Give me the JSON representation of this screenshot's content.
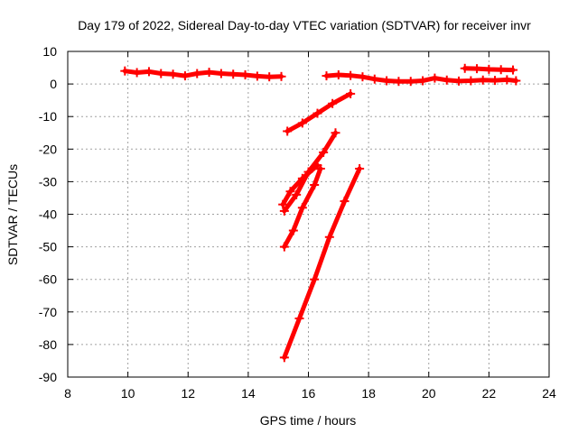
{
  "chart_data": {
    "type": "scatter",
    "title": "Day 179 of 2022, Sidereal Day-to-day VTEC variation (SDTVAR) for receiver invr",
    "xlabel": "GPS time / hours",
    "ylabel": "SDTVAR / TECUs",
    "xlim": [
      8,
      24
    ],
    "ylim": [
      -90,
      10
    ],
    "xticks": [
      8,
      10,
      12,
      14,
      16,
      18,
      20,
      22,
      24
    ],
    "yticks": [
      10,
      0,
      -10,
      -20,
      -30,
      -40,
      -50,
      -60,
      -70,
      -80,
      -90
    ],
    "grid": true,
    "color": "#ff0000",
    "series": [
      {
        "x": [
          9.9,
          10.3,
          10.7,
          11.1,
          11.5,
          11.9,
          12.3,
          12.7,
          13.1,
          13.5,
          13.9,
          14.3,
          14.7,
          15.1
        ],
        "y": [
          4.0,
          3.5,
          3.8,
          3.2,
          3.0,
          2.5,
          3.2,
          3.6,
          3.2,
          3.0,
          2.8,
          2.4,
          2.2,
          2.3
        ]
      },
      {
        "x": [
          16.6,
          17.0,
          17.4,
          17.8,
          18.2,
          18.6,
          19.0,
          19.4,
          19.8,
          20.2,
          20.6,
          21.0,
          21.4,
          21.8,
          22.2,
          22.6,
          22.9
        ],
        "y": [
          2.5,
          2.8,
          2.6,
          2.2,
          1.5,
          1.0,
          0.8,
          0.8,
          1.0,
          1.8,
          1.2,
          0.9,
          1.0,
          1.2,
          1.1,
          1.3,
          1.0
        ]
      },
      {
        "x": [
          21.2,
          21.6,
          22.0,
          22.4,
          22.8
        ],
        "y": [
          4.8,
          4.7,
          4.5,
          4.4,
          4.3
        ]
      },
      {
        "x": [
          15.3,
          15.8,
          16.3,
          16.8,
          17.4
        ],
        "y": [
          -14.5,
          -12.0,
          -9.0,
          -6.0,
          -3.0
        ]
      },
      {
        "x": [
          15.15,
          15.4,
          15.8,
          16.3
        ],
        "y": [
          -37.0,
          -33.0,
          -29.0,
          -25.0
        ]
      },
      {
        "x": [
          15.2,
          15.6,
          16.0,
          16.5,
          16.9
        ],
        "y": [
          -39.0,
          -34.0,
          -27.0,
          -21.0,
          -15.0
        ]
      },
      {
        "x": [
          15.2,
          15.5,
          15.8,
          16.2,
          16.4
        ],
        "y": [
          -50.0,
          -45.0,
          -38.0,
          -31.0,
          -26.0
        ]
      },
      {
        "x": [
          15.2,
          15.7,
          16.2,
          16.7,
          17.2,
          17.7
        ],
        "y": [
          -84.0,
          -72.0,
          -60.0,
          -47.0,
          -36.0,
          -26.0
        ]
      }
    ]
  }
}
